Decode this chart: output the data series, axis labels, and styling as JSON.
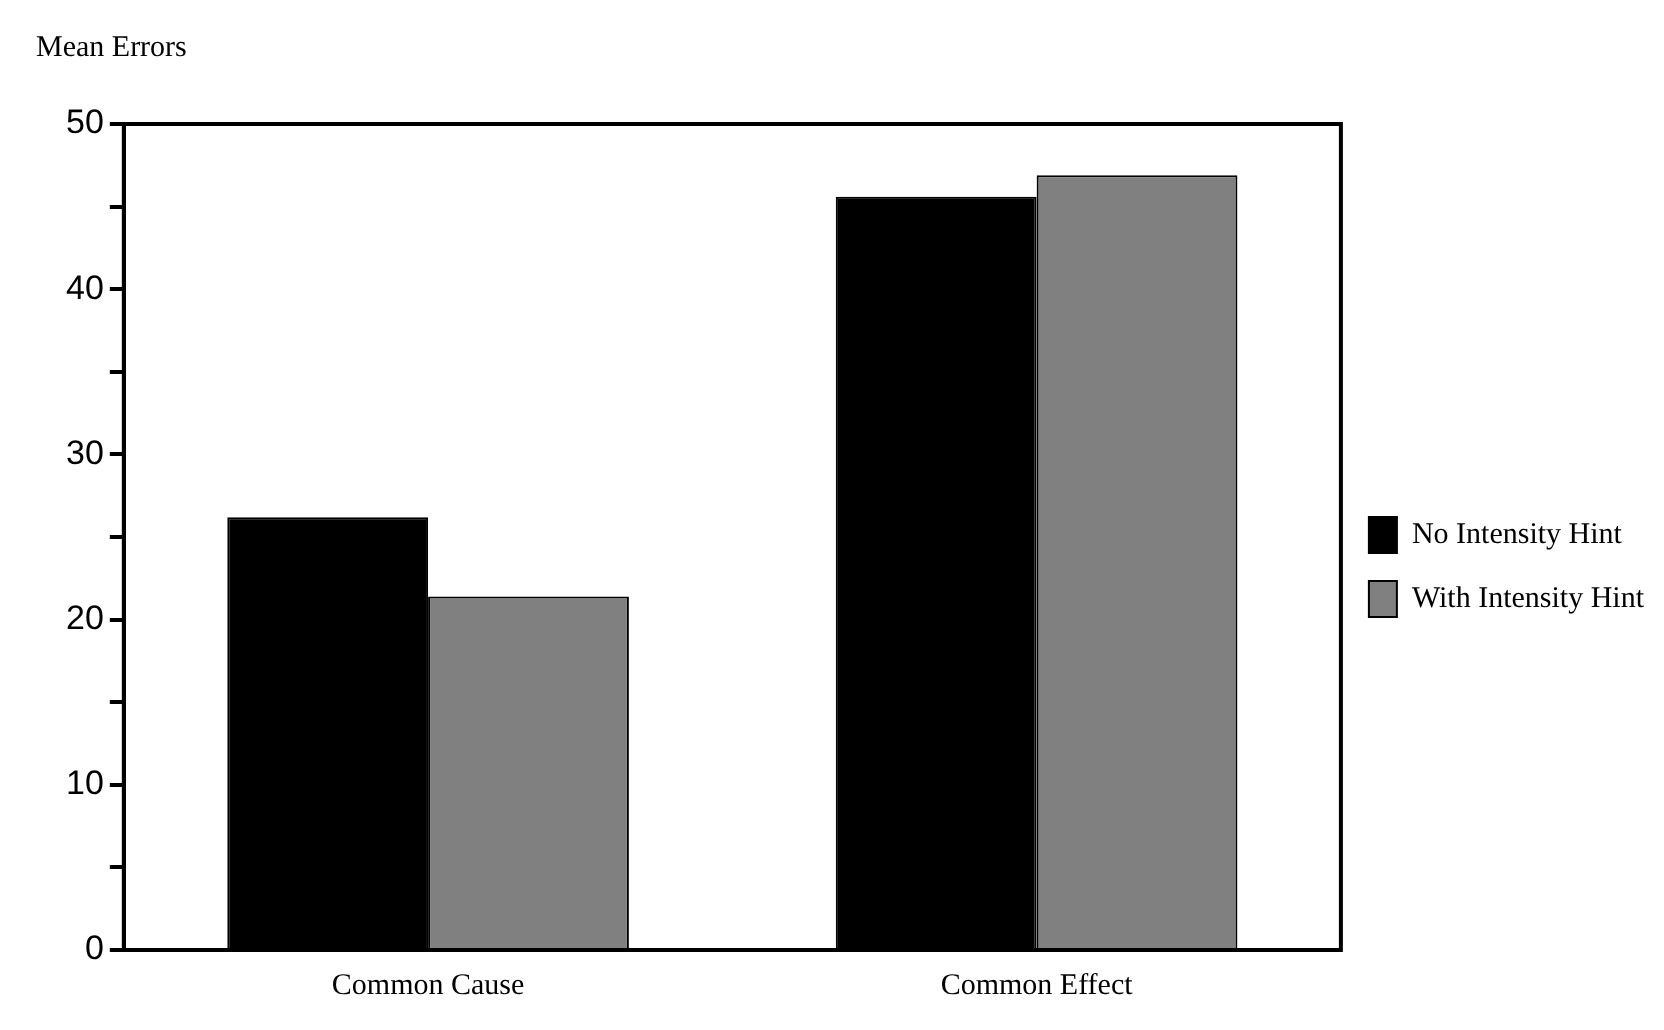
{
  "chart_data": {
    "type": "bar",
    "ylabel": "Mean Errors",
    "categories": [
      "Common Cause",
      "Common Effect"
    ],
    "series": [
      {
        "name": "No Intensity Hint",
        "color": "#000000",
        "values": [
          26.2,
          45.6
        ]
      },
      {
        "name": "With Intensity Hint",
        "color": "#808080",
        "values": [
          21.4,
          46.9
        ]
      }
    ],
    "ylim": [
      0,
      50
    ],
    "yticks": [
      0,
      {
        "value": 5,
        "label": null
      },
      10,
      {
        "value": 15,
        "label": null
      },
      20,
      {
        "value": 25,
        "label": null
      },
      30,
      {
        "value": 35,
        "label": null
      },
      40,
      {
        "value": 45,
        "label": null
      },
      50
    ],
    "grid": false,
    "legend": "right"
  }
}
